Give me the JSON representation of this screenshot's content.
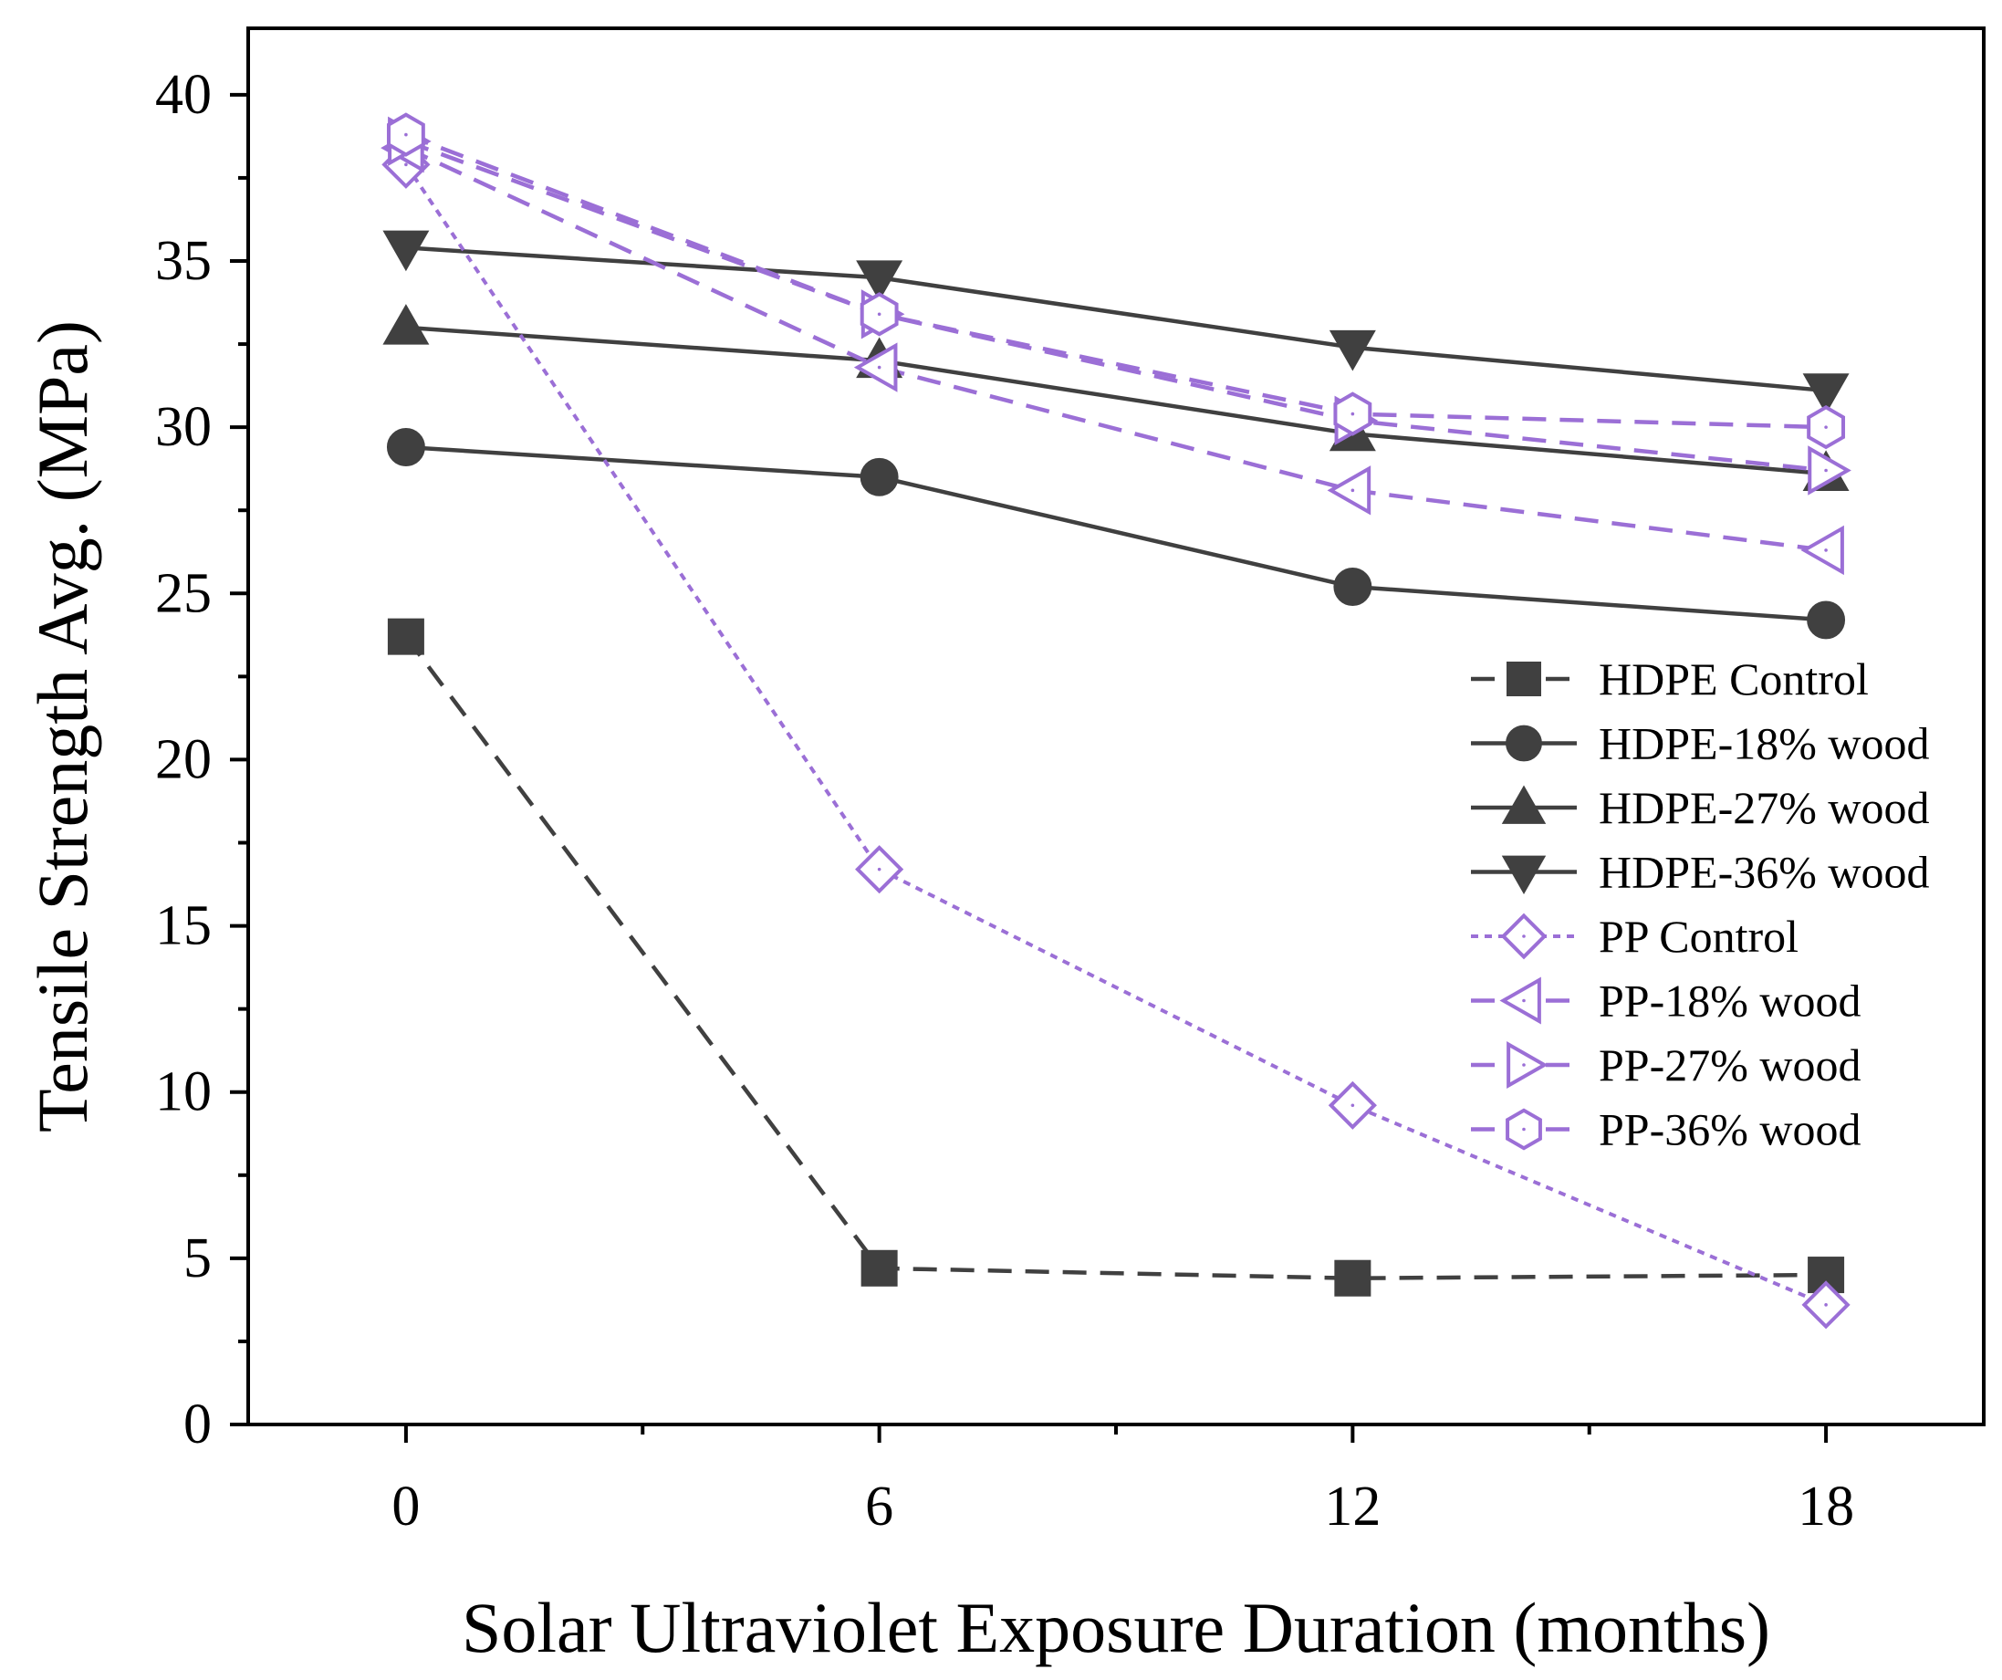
{
  "chart_data": {
    "type": "line",
    "title": "",
    "xlabel": "Solar Ultraviolet Exposure Duration (months)",
    "ylabel": "Tensile Strength Avg. (MPa)",
    "x": [
      0,
      6,
      12,
      18
    ],
    "xlim": [
      -2,
      20
    ],
    "ylim": [
      0,
      42
    ],
    "xticks": [
      0,
      6,
      12,
      18
    ],
    "yticks": [
      0,
      5,
      10,
      15,
      20,
      25,
      30,
      35,
      40
    ],
    "grid": false,
    "legend_position": "center-right",
    "series": [
      {
        "name": "HDPE Control",
        "values": [
          23.7,
          4.7,
          4.4,
          4.5
        ],
        "color": "#404040",
        "line": "dashed",
        "marker": "square",
        "filled": true
      },
      {
        "name": "HDPE-18% wood",
        "values": [
          29.4,
          28.5,
          25.2,
          24.2
        ],
        "color": "#404040",
        "line": "solid",
        "marker": "circle",
        "filled": true
      },
      {
        "name": "HDPE-27% wood",
        "values": [
          33.0,
          32.0,
          29.8,
          28.6
        ],
        "color": "#404040",
        "line": "solid",
        "marker": "triangle-up",
        "filled": true
      },
      {
        "name": "HDPE-36% wood",
        "values": [
          35.4,
          34.5,
          32.4,
          31.1
        ],
        "color": "#404040",
        "line": "solid",
        "marker": "triangle-down",
        "filled": true
      },
      {
        "name": "PP Control",
        "values": [
          37.9,
          16.7,
          9.6,
          3.6
        ],
        "color": "#9b6fd6",
        "line": "dotted",
        "marker": "diamond",
        "filled": false
      },
      {
        "name": "PP-18% wood",
        "values": [
          38.4,
          31.8,
          28.1,
          26.3
        ],
        "color": "#9b6fd6",
        "line": "dashed",
        "marker": "triangle-left",
        "filled": false
      },
      {
        "name": "PP-27% wood",
        "values": [
          38.6,
          33.4,
          30.2,
          28.7
        ],
        "color": "#9b6fd6",
        "line": "dashed",
        "marker": "triangle-right",
        "filled": false
      },
      {
        "name": "PP-36% wood",
        "values": [
          38.8,
          33.4,
          30.4,
          30.0
        ],
        "color": "#9b6fd6",
        "line": "dashed",
        "marker": "hexagon",
        "filled": false
      }
    ]
  }
}
